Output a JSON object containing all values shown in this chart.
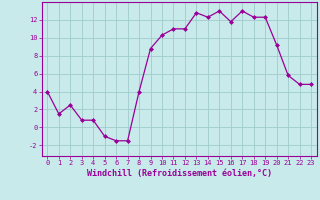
{
  "x": [
    0,
    1,
    2,
    3,
    4,
    5,
    6,
    7,
    8,
    9,
    10,
    11,
    12,
    13,
    14,
    15,
    16,
    17,
    18,
    19,
    20,
    21,
    22,
    23
  ],
  "y": [
    4.0,
    1.5,
    2.5,
    0.8,
    0.8,
    -1.0,
    -1.5,
    -1.5,
    4.0,
    8.8,
    10.3,
    11.0,
    11.0,
    12.8,
    12.3,
    13.0,
    11.8,
    13.0,
    12.3,
    12.3,
    9.2,
    5.8,
    4.8,
    4.8
  ],
  "line_color": "#990099",
  "marker": "D",
  "marker_size": 2.0,
  "bg_color": "#c8eaea",
  "grid_color": "#a0cccc",
  "xlabel": "Windchill (Refroidissement éolien,°C)",
  "ylim": [
    -3.2,
    14.0
  ],
  "xlim": [
    -0.5,
    23.5
  ],
  "yticks": [
    -2,
    0,
    2,
    4,
    6,
    8,
    10,
    12
  ],
  "xticks": [
    0,
    1,
    2,
    3,
    4,
    5,
    6,
    7,
    8,
    9,
    10,
    11,
    12,
    13,
    14,
    15,
    16,
    17,
    18,
    19,
    20,
    21,
    22,
    23
  ],
  "tick_color": "#990099",
  "label_fontsize": 6.0,
  "tick_fontsize": 5.0,
  "linewidth": 0.9
}
